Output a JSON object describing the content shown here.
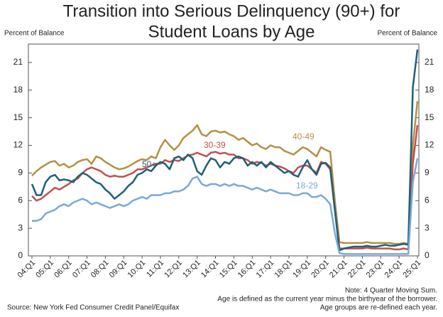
{
  "chart_data": {
    "type": "line",
    "title": [
      "Transition into Serious Delinquency (90+) for",
      "Student Loans by Age"
    ],
    "y_label": "Percent of Balance",
    "categories": [
      "04:Q1",
      null,
      null,
      null,
      "05:Q1",
      null,
      null,
      null,
      "06:Q1",
      null,
      null,
      null,
      "07:Q1",
      null,
      null,
      null,
      "08:Q1",
      null,
      null,
      null,
      "09:Q1",
      null,
      null,
      null,
      "10:Q1",
      null,
      null,
      null,
      "11:Q1",
      null,
      null,
      null,
      "12:Q1",
      null,
      null,
      null,
      "13:Q1",
      null,
      null,
      null,
      "14:Q1",
      null,
      null,
      null,
      "15:Q1",
      null,
      null,
      null,
      "16:Q1",
      null,
      null,
      null,
      "17:Q1",
      null,
      null,
      null,
      "18:Q1",
      null,
      null,
      null,
      "19:Q1",
      null,
      null,
      null,
      "20:Q1",
      null,
      null,
      null,
      "21:Q1",
      null,
      null,
      null,
      "22:Q1",
      null,
      null,
      null,
      "23:Q1",
      null,
      null,
      null,
      "24:Q1",
      null,
      null,
      null,
      "25:Q1"
    ],
    "series": [
      {
        "name": "40-49",
        "color": "#b39045",
        "values": [
          8.7,
          9.2,
          9.6,
          9.9,
          10.2,
          10.3,
          9.8,
          10.0,
          9.6,
          9.8,
          10.2,
          10.4,
          10.5,
          10.0,
          10.8,
          10.6,
          10.2,
          9.9,
          9.6,
          9.4,
          9.5,
          9.7,
          10.0,
          10.3,
          10.5,
          10.4,
          10.8,
          10.6,
          11.8,
          12.6,
          12.0,
          11.5,
          12.0,
          12.8,
          13.2,
          13.6,
          14.2,
          13.2,
          13.0,
          13.5,
          13.6,
          13.4,
          13.5,
          13.2,
          13.0,
          12.6,
          12.8,
          12.4,
          12.0,
          12.2,
          11.8,
          11.6,
          12.0,
          11.8,
          11.8,
          11.4,
          11.2,
          11.0,
          11.4,
          11.8,
          11.6,
          11.2,
          10.8,
          11.8,
          11.5,
          11.3,
          6.0,
          1.5,
          1.4,
          1.4,
          1.4,
          1.4,
          1.4,
          1.5,
          1.4,
          1.4,
          1.4,
          1.4,
          1.4,
          1.3,
          1.3,
          1.4,
          1.3,
          12.0,
          16.8
        ]
      },
      {
        "name": "30-39",
        "color": "#c0504d",
        "values": [
          6.5,
          6.0,
          6.2,
          6.6,
          7.0,
          7.4,
          7.2,
          7.5,
          7.8,
          8.2,
          8.4,
          9.0,
          9.4,
          9.6,
          9.4,
          9.2,
          8.8,
          8.6,
          8.7,
          8.6,
          8.6,
          8.8,
          9.0,
          9.4,
          9.4,
          9.6,
          9.8,
          10.0,
          10.0,
          10.4,
          10.2,
          10.4,
          10.3,
          10.6,
          10.9,
          11.0,
          11.2,
          11.0,
          10.8,
          11.2,
          11.3,
          11.1,
          11.2,
          11.0,
          11.0,
          10.6,
          10.6,
          10.4,
          10.0,
          10.2,
          10.1,
          9.8,
          10.0,
          9.8,
          9.7,
          9.5,
          9.2,
          9.0,
          9.6,
          9.8,
          9.8,
          9.4,
          9.0,
          10.2,
          10.0,
          9.4,
          5.0,
          0.8,
          0.8,
          0.8,
          0.8,
          0.8,
          0.8,
          0.9,
          0.8,
          0.8,
          0.8,
          0.8,
          0.8,
          0.7,
          0.7,
          0.8,
          0.7,
          10.0,
          14.2
        ]
      },
      {
        "name": "50+",
        "color": "#1f5f7a",
        "values": [
          7.8,
          6.6,
          6.6,
          8.0,
          8.6,
          8.8,
          8.2,
          8.3,
          8.2,
          8.0,
          8.6,
          9.0,
          8.8,
          8.4,
          8.0,
          7.8,
          7.2,
          6.8,
          6.2,
          6.6,
          7.0,
          7.6,
          8.0,
          8.8,
          9.0,
          9.4,
          9.2,
          9.8,
          10.2,
          10.0,
          9.4,
          10.6,
          10.8,
          10.4,
          11.0,
          10.6,
          9.2,
          8.8,
          9.8,
          10.6,
          10.4,
          9.6,
          10.2,
          10.0,
          10.6,
          10.8,
          10.6,
          9.8,
          10.2,
          9.8,
          10.2,
          9.6,
          10.2,
          9.8,
          9.4,
          9.0,
          9.2,
          8.8,
          8.6,
          9.6,
          10.4,
          9.4,
          8.8,
          10.0,
          10.1,
          9.6,
          5.0,
          0.6,
          0.8,
          0.9,
          1.0,
          1.0,
          1.0,
          1.1,
          1.0,
          1.0,
          1.1,
          1.2,
          1.1,
          1.1,
          1.2,
          1.3,
          1.2,
          18.3,
          22.4
        ]
      },
      {
        "name": "18-29",
        "color": "#7aa9d8",
        "values": [
          3.8,
          3.8,
          4.0,
          4.6,
          4.8,
          5.0,
          5.4,
          5.6,
          5.4,
          5.8,
          6.0,
          6.2,
          6.0,
          5.6,
          5.8,
          5.6,
          5.4,
          5.2,
          5.4,
          5.6,
          5.4,
          5.6,
          6.0,
          6.2,
          6.4,
          6.2,
          6.6,
          6.6,
          6.6,
          6.8,
          6.8,
          7.0,
          7.0,
          7.2,
          7.6,
          8.4,
          8.6,
          7.8,
          7.6,
          7.8,
          7.8,
          7.6,
          7.8,
          7.6,
          7.8,
          7.6,
          7.6,
          7.4,
          7.2,
          7.4,
          7.2,
          7.0,
          7.2,
          7.0,
          6.8,
          6.8,
          6.8,
          6.6,
          6.6,
          6.8,
          6.8,
          6.4,
          6.4,
          6.6,
          6.2,
          5.6,
          2.5,
          0.3,
          0.2,
          0.2,
          0.2,
          0.2,
          0.2,
          0.2,
          0.2,
          0.2,
          0.2,
          0.2,
          0.2,
          0.2,
          0.2,
          0.2,
          0.2,
          8.0,
          10.6
        ]
      }
    ],
    "ylim": [
      0,
      23
    ],
    "yticks": [
      0,
      3,
      6,
      9,
      12,
      15,
      18,
      21
    ],
    "notes": [
      "Note: 4 Quarter Moving Sum.",
      "Age is defined as the current year minus the birthyear of the borrower.",
      "Age groups are re-defined each year."
    ],
    "source": "Source: New York Fed Consumer Credit Panel/Equifax"
  }
}
